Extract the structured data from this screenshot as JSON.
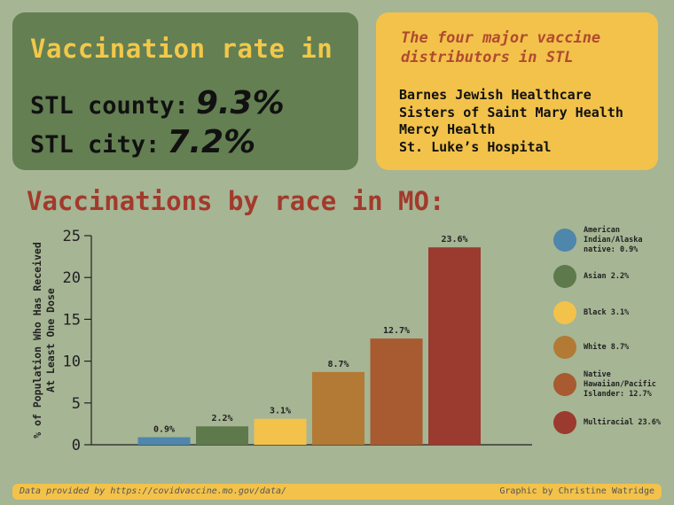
{
  "rates": {
    "heading": "Vaccination rate in",
    "county_label": "STL county:",
    "county_value": "9.3%",
    "city_label": "STL city:",
    "city_value": "7.2%"
  },
  "distributors": {
    "heading": "The four major vaccine distributors in STL",
    "items": [
      "Barnes Jewish Healthcare",
      "Sisters of Saint Mary Health",
      "Mercy Health",
      "St. Luke’s Hospital"
    ]
  },
  "chart_data": {
    "type": "bar",
    "title": "Vaccinations by race in MO:",
    "ylabel": "% of Population Who Has Received At Least One Dose",
    "ylabel_lines": [
      "% of Population Who Has Received",
      "At Least One Dose"
    ],
    "xlabel": "",
    "ylim": [
      0,
      25
    ],
    "yticks": [
      0,
      5,
      10,
      15,
      20,
      25
    ],
    "categories": [
      "American Indian/Alaska native",
      "Asian",
      "Black",
      "White",
      "Native Hawaiian/Pacific Islander",
      "Multiracial"
    ],
    "values": [
      0.9,
      2.2,
      3.1,
      8.7,
      12.7,
      23.6
    ],
    "data_labels": [
      "0.9%",
      "2.2%",
      "3.1%",
      "8.7%",
      "12.7%",
      "23.6%"
    ],
    "colors": [
      "#4e86ac",
      "#5e7a4c",
      "#f2c24b",
      "#b27a35",
      "#a85a30",
      "#9b3a2e"
    ],
    "legend": [
      "American Indian/Alaska native: 0.9%",
      "Asian 2.2%",
      "Black 3.1%",
      "White 8.7%",
      "Native Hawaiian/Pacific Islander: 12.7%",
      "Multiracial 23.6%"
    ],
    "legend_position": "right",
    "grid": false
  },
  "footer": {
    "source": "Data provided by https://covidvaccine.mo.gov/data/",
    "credit": "Graphic by Christine Watridge"
  }
}
